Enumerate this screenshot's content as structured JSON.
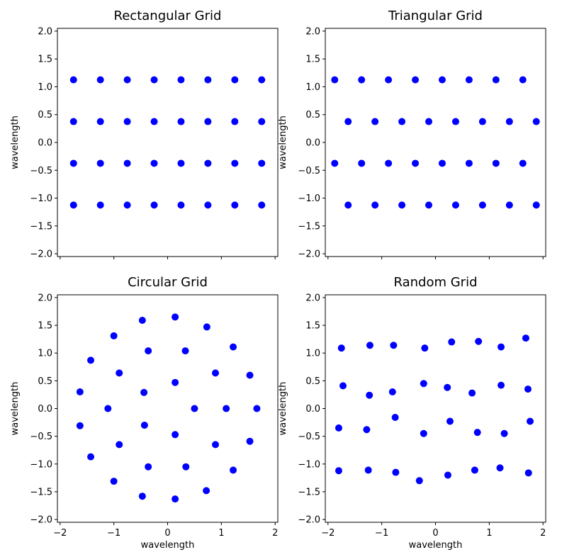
{
  "chart_data": [
    {
      "type": "scatter",
      "title": "Rectangular Grid",
      "xlabel": "",
      "ylabel": "wavelength",
      "xlim": [
        -2.05,
        2.05
      ],
      "ylim": [
        -2.05,
        2.05
      ],
      "show_xticklabels": false,
      "xticks": [
        -2,
        -1,
        0,
        1,
        2
      ],
      "yticks": [
        2.0,
        1.5,
        1.0,
        0.5,
        0.0,
        -0.5,
        -1.0,
        -1.5,
        -2.0
      ],
      "ytick_labels": [
        "2.0",
        "1.5",
        "1.0",
        "0.5",
        "0.0",
        "−0.5",
        "−1.0",
        "−1.5",
        "−2.0"
      ],
      "color": "#0000ff",
      "points": [
        [
          -1.75,
          1.125
        ],
        [
          -1.25,
          1.125
        ],
        [
          -0.75,
          1.125
        ],
        [
          -0.25,
          1.125
        ],
        [
          0.25,
          1.125
        ],
        [
          0.75,
          1.125
        ],
        [
          1.25,
          1.125
        ],
        [
          1.75,
          1.125
        ],
        [
          -1.75,
          0.375
        ],
        [
          -1.25,
          0.375
        ],
        [
          -0.75,
          0.375
        ],
        [
          -0.25,
          0.375
        ],
        [
          0.25,
          0.375
        ],
        [
          0.75,
          0.375
        ],
        [
          1.25,
          0.375
        ],
        [
          1.75,
          0.375
        ],
        [
          -1.75,
          -0.375
        ],
        [
          -1.25,
          -0.375
        ],
        [
          -0.75,
          -0.375
        ],
        [
          -0.25,
          -0.375
        ],
        [
          0.25,
          -0.375
        ],
        [
          0.75,
          -0.375
        ],
        [
          1.25,
          -0.375
        ],
        [
          1.75,
          -0.375
        ],
        [
          -1.75,
          -1.125
        ],
        [
          -1.25,
          -1.125
        ],
        [
          -0.75,
          -1.125
        ],
        [
          -0.25,
          -1.125
        ],
        [
          0.25,
          -1.125
        ],
        [
          0.75,
          -1.125
        ],
        [
          1.25,
          -1.125
        ],
        [
          1.75,
          -1.125
        ]
      ]
    },
    {
      "type": "scatter",
      "title": "Triangular Grid",
      "xlabel": "",
      "ylabel": "wavelength",
      "xlim": [
        -2.05,
        2.05
      ],
      "ylim": [
        -2.05,
        2.05
      ],
      "show_xticklabels": false,
      "xticks": [
        -2,
        -1,
        0,
        1,
        2
      ],
      "yticks": [
        2.0,
        1.5,
        1.0,
        0.5,
        0.0,
        -0.5,
        -1.0,
        -1.5,
        -2.0
      ],
      "ytick_labels": [
        "2.0",
        "1.5",
        "1.0",
        "0.5",
        "0.0",
        "−0.5",
        "−1.0",
        "−1.5",
        "−2.0"
      ],
      "color": "#0000ff",
      "points": [
        [
          -1.875,
          1.125
        ],
        [
          -1.375,
          1.125
        ],
        [
          -0.875,
          1.125
        ],
        [
          -0.375,
          1.125
        ],
        [
          0.125,
          1.125
        ],
        [
          0.625,
          1.125
        ],
        [
          1.125,
          1.125
        ],
        [
          1.625,
          1.125
        ],
        [
          -1.625,
          0.375
        ],
        [
          -1.125,
          0.375
        ],
        [
          -0.625,
          0.375
        ],
        [
          -0.125,
          0.375
        ],
        [
          0.375,
          0.375
        ],
        [
          0.875,
          0.375
        ],
        [
          1.375,
          0.375
        ],
        [
          1.875,
          0.375
        ],
        [
          -1.875,
          -0.375
        ],
        [
          -1.375,
          -0.375
        ],
        [
          -0.875,
          -0.375
        ],
        [
          -0.375,
          -0.375
        ],
        [
          0.125,
          -0.375
        ],
        [
          0.625,
          -0.375
        ],
        [
          1.125,
          -0.375
        ],
        [
          1.625,
          -0.375
        ],
        [
          -1.625,
          -1.125
        ],
        [
          -1.125,
          -1.125
        ],
        [
          -0.625,
          -1.125
        ],
        [
          -0.125,
          -1.125
        ],
        [
          0.375,
          -1.125
        ],
        [
          0.875,
          -1.125
        ],
        [
          1.375,
          -1.125
        ],
        [
          1.875,
          -1.125
        ]
      ]
    },
    {
      "type": "scatter",
      "title": "Circular Grid",
      "xlabel": "wavelength",
      "ylabel": "wavelength",
      "xlim": [
        -2.05,
        2.05
      ],
      "ylim": [
        -2.05,
        2.05
      ],
      "show_xticklabels": true,
      "xticks": [
        -2,
        -1,
        0,
        1,
        2
      ],
      "xtick_labels": [
        "−2",
        "−1",
        "0",
        "1",
        "2"
      ],
      "yticks": [
        2.0,
        1.5,
        1.0,
        0.5,
        0.0,
        -0.5,
        -1.0,
        -1.5,
        -2.0
      ],
      "ytick_labels": [
        "2.0",
        "1.5",
        "1.0",
        "0.5",
        "0.0",
        "−0.5",
        "−1.0",
        "−1.5",
        "−2.0"
      ],
      "color": "#0000ff",
      "points": [
        [
          0.14,
          1.65
        ],
        [
          -0.47,
          1.59
        ],
        [
          0.73,
          1.47
        ],
        [
          -1.0,
          1.31
        ],
        [
          1.22,
          1.11
        ],
        [
          -0.36,
          1.04
        ],
        [
          0.33,
          1.04
        ],
        [
          -1.43,
          0.87
        ],
        [
          -0.9,
          0.64
        ],
        [
          0.89,
          0.64
        ],
        [
          1.53,
          0.6
        ],
        [
          0.14,
          0.47
        ],
        [
          -0.44,
          0.29
        ],
        [
          -1.63,
          0.3
        ],
        [
          -1.11,
          0.0
        ],
        [
          0.5,
          0.0
        ],
        [
          1.09,
          0.0
        ],
        [
          1.66,
          0.0
        ],
        [
          -1.63,
          -0.31
        ],
        [
          -0.43,
          -0.3
        ],
        [
          0.14,
          -0.47
        ],
        [
          -0.9,
          -0.65
        ],
        [
          0.89,
          -0.65
        ],
        [
          1.53,
          -0.59
        ],
        [
          -1.43,
          -0.87
        ],
        [
          -0.36,
          -1.05
        ],
        [
          0.34,
          -1.05
        ],
        [
          1.22,
          -1.11
        ],
        [
          -1.0,
          -1.31
        ],
        [
          0.72,
          -1.48
        ],
        [
          -0.47,
          -1.58
        ],
        [
          0.14,
          -1.63
        ]
      ]
    },
    {
      "type": "scatter",
      "title": "Random Grid",
      "xlabel": "wavelength",
      "ylabel": "wavelength",
      "xlim": [
        -2.05,
        2.05
      ],
      "ylim": [
        -2.05,
        2.05
      ],
      "show_xticklabels": true,
      "xticks": [
        -2,
        -1,
        0,
        1,
        2
      ],
      "xtick_labels": [
        "−2",
        "−1",
        "0",
        "1",
        "2"
      ],
      "yticks": [
        2.0,
        1.5,
        1.0,
        0.5,
        0.0,
        -0.5,
        -1.0,
        -1.5,
        -2.0
      ],
      "ytick_labels": [
        "2.0",
        "1.5",
        "1.0",
        "0.5",
        "0.0",
        "−0.5",
        "−1.0",
        "−1.5",
        "−2.0"
      ],
      "color": "#0000ff",
      "points": [
        [
          -1.75,
          1.09
        ],
        [
          -1.22,
          1.14
        ],
        [
          -0.78,
          1.14
        ],
        [
          -0.2,
          1.09
        ],
        [
          0.3,
          1.2
        ],
        [
          0.8,
          1.21
        ],
        [
          1.22,
          1.11
        ],
        [
          1.68,
          1.27
        ],
        [
          -1.72,
          0.41
        ],
        [
          -1.23,
          0.24
        ],
        [
          -0.8,
          0.3
        ],
        [
          -0.22,
          0.45
        ],
        [
          0.22,
          0.38
        ],
        [
          0.68,
          0.28
        ],
        [
          1.22,
          0.42
        ],
        [
          1.72,
          0.35
        ],
        [
          -1.8,
          -0.35
        ],
        [
          -1.28,
          -0.38
        ],
        [
          -0.75,
          -0.16
        ],
        [
          -0.22,
          -0.45
        ],
        [
          0.27,
          -0.23
        ],
        [
          0.78,
          -0.43
        ],
        [
          1.28,
          -0.45
        ],
        [
          1.76,
          -0.23
        ],
        [
          -1.8,
          -1.12
        ],
        [
          -1.25,
          -1.11
        ],
        [
          -0.74,
          -1.15
        ],
        [
          -0.3,
          -1.3
        ],
        [
          0.23,
          -1.2
        ],
        [
          0.73,
          -1.11
        ],
        [
          1.2,
          -1.07
        ],
        [
          1.73,
          -1.16
        ]
      ]
    }
  ]
}
